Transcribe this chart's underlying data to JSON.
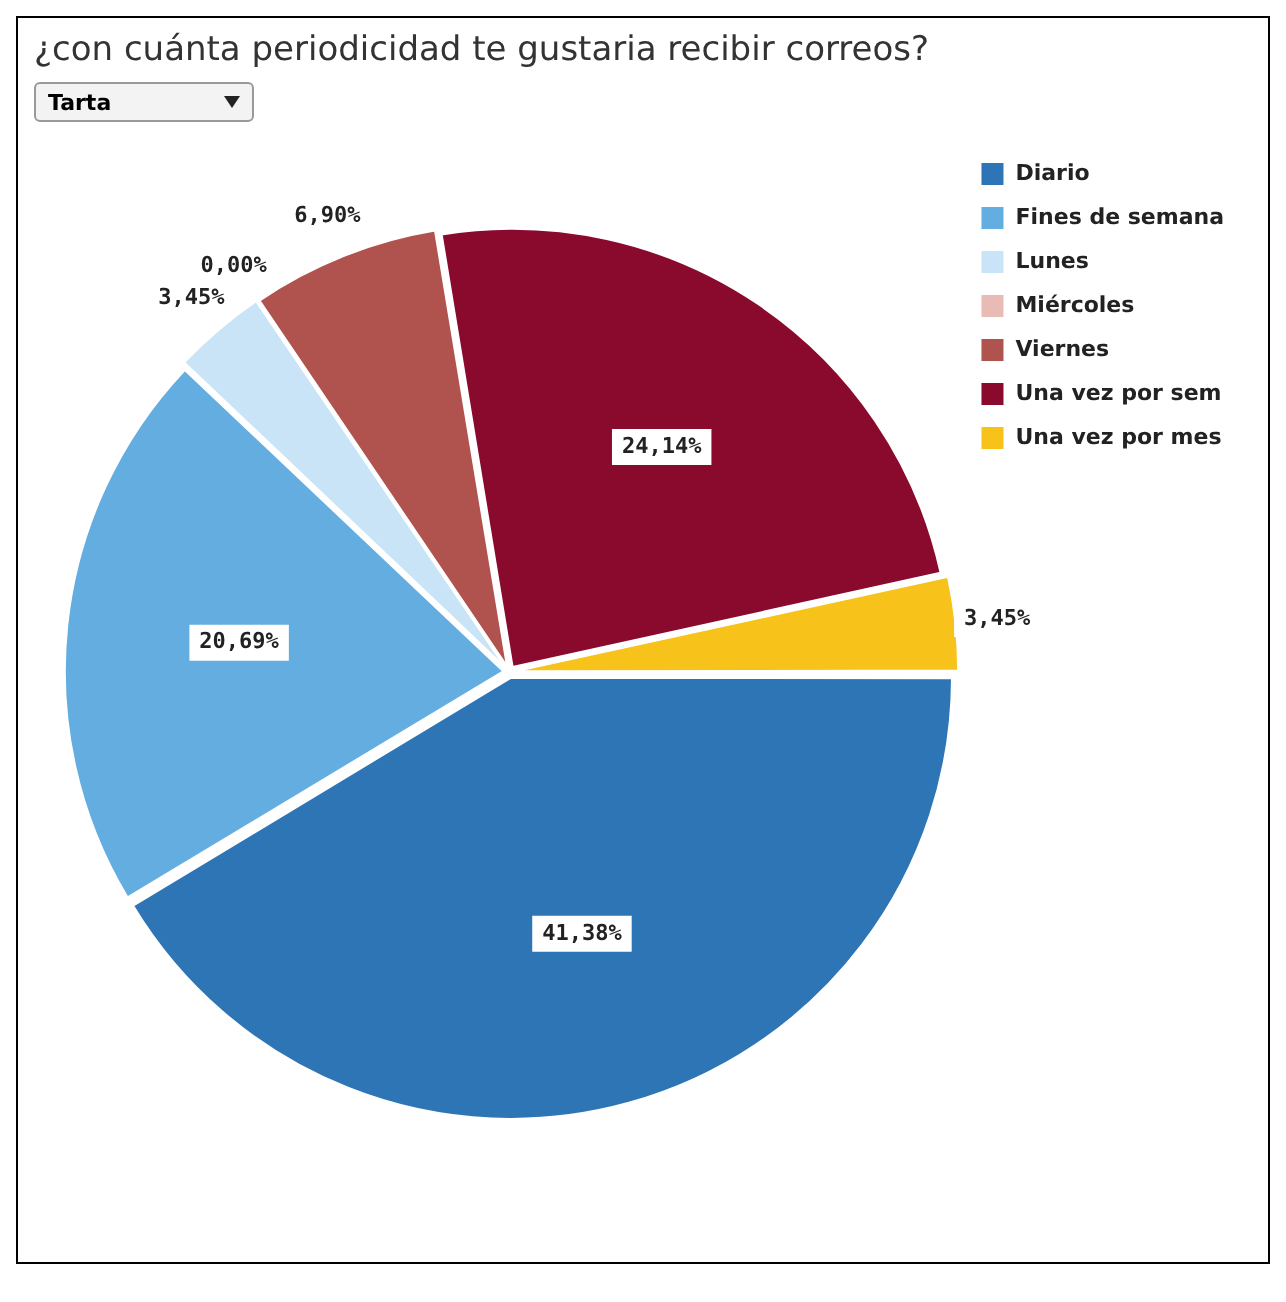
{
  "chart_data": {
    "type": "pie",
    "title": "¿con cuánta periodicidad te gustaria recibir correos?",
    "categories": [
      "Diario",
      "Fines de semana",
      "Lunes",
      "Miércoles",
      "Viernes",
      "Una vez por sem",
      "Una vez por mes"
    ],
    "values": [
      41.38,
      20.69,
      3.45,
      0,
      6.9,
      24.14,
      3.45
    ],
    "value_labels": [
      "41,38%",
      "20,69%",
      "3,45%",
      "0,00%",
      "6,90%",
      "24,14%",
      "3,45%"
    ],
    "colors": [
      "#2e75b6",
      "#63ade0",
      "#c9e4f7",
      "#e8bcb5",
      "#b0524d",
      "#8a0a2e",
      "#f7c21a"
    ],
    "legend": "top right",
    "annotations": [
      "Tarta"
    ]
  }
}
